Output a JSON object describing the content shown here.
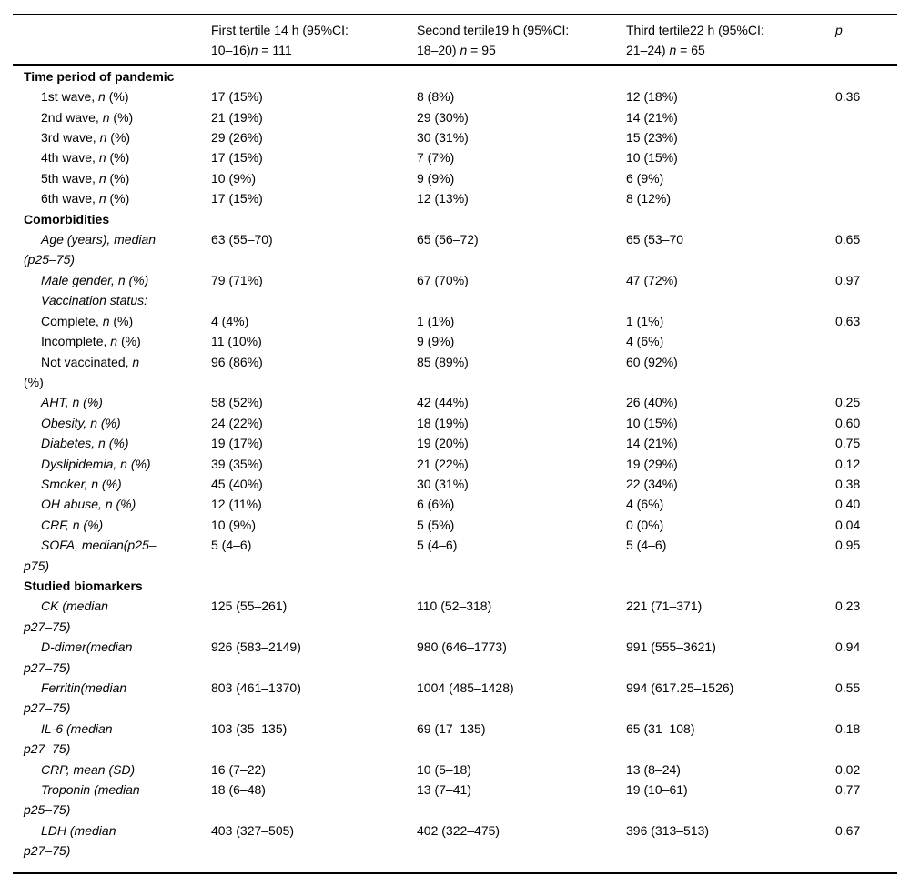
{
  "page": {
    "background_color": "#ffffff",
    "text_color": "#000000",
    "rule_color": "#000000"
  },
  "table": {
    "header": {
      "stub": "",
      "columns": [
        {
          "lines": [
            [
              {
                "t": "First tertile 14 h (95%CI:",
                "i": false
              }
            ],
            [
              {
                "t": "10–16)",
                "i": false
              },
              {
                "t": "n",
                "i": true
              },
              {
                "t": " = 111",
                "i": false
              }
            ]
          ]
        },
        {
          "lines": [
            [
              {
                "t": "Second tertile19 h (95%CI:",
                "i": false
              }
            ],
            [
              {
                "t": "18–20) ",
                "i": false
              },
              {
                "t": "n",
                "i": true
              },
              {
                "t": " = 95",
                "i": false
              }
            ]
          ]
        },
        {
          "lines": [
            [
              {
                "t": "Third tertile22 h (95%CI:",
                "i": false
              }
            ],
            [
              {
                "t": "21–24) ",
                "i": false
              },
              {
                "t": "n",
                "i": true
              },
              {
                "t": " = 65",
                "i": false
              }
            ]
          ]
        },
        {
          "lines": [
            [
              {
                "t": "p",
                "i": true
              }
            ]
          ]
        }
      ]
    },
    "sections": [
      {
        "title": "Time period of pandemic",
        "rows": [
          {
            "label": [
              [
                {
                  "t": "1st wave, ",
                  "i": false
                },
                {
                  "t": "n",
                  "i": true
                },
                {
                  "t": " (%)",
                  "i": false
                }
              ]
            ],
            "values": [
              "17 (15%)",
              "8 (8%)",
              "12 (18%)"
            ],
            "p": "0.36"
          },
          {
            "label": [
              [
                {
                  "t": "2nd wave, ",
                  "i": false
                },
                {
                  "t": "n",
                  "i": true
                },
                {
                  "t": " (%)",
                  "i": false
                }
              ]
            ],
            "values": [
              "21 (19%)",
              "29 (30%)",
              "14 (21%)"
            ],
            "p": ""
          },
          {
            "label": [
              [
                {
                  "t": "3rd wave, ",
                  "i": false
                },
                {
                  "t": "n",
                  "i": true
                },
                {
                  "t": " (%)",
                  "i": false
                }
              ]
            ],
            "values": [
              "29 (26%)",
              "30 (31%)",
              "15 (23%)"
            ],
            "p": ""
          },
          {
            "label": [
              [
                {
                  "t": "4th wave, ",
                  "i": false
                },
                {
                  "t": "n",
                  "i": true
                },
                {
                  "t": " (%)",
                  "i": false
                }
              ]
            ],
            "values": [
              "17 (15%)",
              "7 (7%)",
              "10 (15%)"
            ],
            "p": ""
          },
          {
            "label": [
              [
                {
                  "t": "5th wave, ",
                  "i": false
                },
                {
                  "t": "n",
                  "i": true
                },
                {
                  "t": " (%)",
                  "i": false
                }
              ]
            ],
            "values": [
              "10 (9%)",
              "9 (9%)",
              "6 (9%)"
            ],
            "p": ""
          },
          {
            "label": [
              [
                {
                  "t": "6th wave, ",
                  "i": false
                },
                {
                  "t": "n",
                  "i": true
                },
                {
                  "t": " (%)",
                  "i": false
                }
              ]
            ],
            "values": [
              "17 (15%)",
              "12 (13%)",
              "8 (12%)"
            ],
            "p": ""
          }
        ]
      },
      {
        "title": "Comorbidities",
        "rows": [
          {
            "label": [
              [
                {
                  "t": "Age (years), median",
                  "i": true
                }
              ],
              [
                {
                  "t": "(p25–75)",
                  "i": true
                }
              ]
            ],
            "values": [
              "63 (55–70)",
              "65 (56–72)",
              "65 (53–70"
            ],
            "p": "0.65"
          },
          {
            "label": [
              [
                {
                  "t": "Male gender, n (%)",
                  "i": true
                }
              ]
            ],
            "values": [
              "79 (71%)",
              "67 (70%)",
              "47 (72%)"
            ],
            "p": "0.97"
          },
          {
            "label": [
              [
                {
                  "t": "Vaccination status:",
                  "i": true
                }
              ]
            ],
            "values": [
              "",
              "",
              ""
            ],
            "p": ""
          },
          {
            "label": [
              [
                {
                  "t": "Complete, ",
                  "i": false
                },
                {
                  "t": "n",
                  "i": true
                },
                {
                  "t": " (%)",
                  "i": false
                }
              ]
            ],
            "values": [
              "4 (4%)",
              "1 (1%)",
              "1 (1%)"
            ],
            "p": "0.63"
          },
          {
            "label": [
              [
                {
                  "t": "Incomplete, ",
                  "i": false
                },
                {
                  "t": "n",
                  "i": true
                },
                {
                  "t": " (%)",
                  "i": false
                }
              ]
            ],
            "values": [
              "11 (10%)",
              "9 (9%)",
              "4 (6%)"
            ],
            "p": ""
          },
          {
            "label": [
              [
                {
                  "t": "Not vaccinated, ",
                  "i": false
                },
                {
                  "t": "n",
                  "i": true
                }
              ],
              [
                {
                  "t": "(%)",
                  "i": false
                }
              ]
            ],
            "values": [
              "96 (86%)",
              "85 (89%)",
              "60 (92%)"
            ],
            "p": ""
          },
          {
            "label": [
              [
                {
                  "t": "AHT, n (%)",
                  "i": true
                }
              ]
            ],
            "values": [
              "58 (52%)",
              "42 (44%)",
              "26 (40%)"
            ],
            "p": "0.25"
          },
          {
            "label": [
              [
                {
                  "t": "Obesity, n (%)",
                  "i": true
                }
              ]
            ],
            "values": [
              "24 (22%)",
              "18 (19%)",
              "10 (15%)"
            ],
            "p": "0.60"
          },
          {
            "label": [
              [
                {
                  "t": "Diabetes, n (%)",
                  "i": true
                }
              ]
            ],
            "values": [
              "19 (17%)",
              "19 (20%)",
              "14 (21%)"
            ],
            "p": "0.75"
          },
          {
            "label": [
              [
                {
                  "t": "Dyslipidemia, n (%)",
                  "i": true
                }
              ]
            ],
            "values": [
              "39 (35%)",
              "21 (22%)",
              "19 (29%)"
            ],
            "p": "0.12"
          },
          {
            "label": [
              [
                {
                  "t": "Smoker, n (%)",
                  "i": true
                }
              ]
            ],
            "values": [
              "45 (40%)",
              "30 (31%)",
              "22 (34%)"
            ],
            "p": "0.38"
          },
          {
            "label": [
              [
                {
                  "t": "OH abuse, n (%)",
                  "i": true
                }
              ]
            ],
            "values": [
              "12 (11%)",
              "6 (6%)",
              "4 (6%)"
            ],
            "p": "0.40"
          },
          {
            "label": [
              [
                {
                  "t": "CRF, n (%)",
                  "i": true
                }
              ]
            ],
            "values": [
              "10 (9%)",
              "5 (5%)",
              "0 (0%)"
            ],
            "p": "0.04"
          },
          {
            "label": [
              [
                {
                  "t": "SOFA, median(p25–",
                  "i": true
                }
              ],
              [
                {
                  "t": "p75)",
                  "i": true
                }
              ]
            ],
            "values": [
              "5 (4–6)",
              "5 (4–6)",
              "5 (4–6)"
            ],
            "p": "0.95"
          }
        ]
      },
      {
        "title": "Studied biomarkers",
        "rows": [
          {
            "label": [
              [
                {
                  "t": "CK (median",
                  "i": true
                }
              ],
              [
                {
                  "t": "p27–75)",
                  "i": true
                }
              ]
            ],
            "values": [
              "125 (55–261)",
              "110 (52–318)",
              "221 (71–371)"
            ],
            "p": "0.23"
          },
          {
            "label": [
              [
                {
                  "t": "D-dimer(median",
                  "i": true
                }
              ],
              [
                {
                  "t": "p27–75)",
                  "i": true
                }
              ]
            ],
            "values": [
              "926 (583–2149)",
              "980 (646–1773)",
              "991 (555–3621)"
            ],
            "p": "0.94"
          },
          {
            "label": [
              [
                {
                  "t": "Ferritin(median",
                  "i": true
                }
              ],
              [
                {
                  "t": "p27–75)",
                  "i": true
                }
              ]
            ],
            "values": [
              "803 (461–1370)",
              "1004 (485–1428)",
              "994 (617.25–1526)"
            ],
            "p": "0.55"
          },
          {
            "label": [
              [
                {
                  "t": "IL-6 (median",
                  "i": true
                }
              ],
              [
                {
                  "t": "p27–75)",
                  "i": true
                }
              ]
            ],
            "values": [
              "103 (35–135)",
              "69 (17–135)",
              "65 (31–108)"
            ],
            "p": "0.18"
          },
          {
            "label": [
              [
                {
                  "t": "CRP, mean (SD)",
                  "i": true
                }
              ]
            ],
            "values": [
              "16 (7–22)",
              "10 (5–18)",
              "13 (8–24)"
            ],
            "p": "0.02"
          },
          {
            "label": [
              [
                {
                  "t": "Troponin (median",
                  "i": true
                }
              ],
              [
                {
                  "t": "p25–75)",
                  "i": true
                }
              ]
            ],
            "values": [
              "18 (6–48)",
              "13 (7–41)",
              "19 (10–61)"
            ],
            "p": "0.77"
          },
          {
            "label": [
              [
                {
                  "t": "LDH (median",
                  "i": true
                }
              ],
              [
                {
                  "t": "p27–75)",
                  "i": true
                }
              ]
            ],
            "values": [
              "403 (327–505)",
              "402 (322–475)",
              "396 (313–513)"
            ],
            "p": "0.67"
          }
        ]
      }
    ]
  }
}
